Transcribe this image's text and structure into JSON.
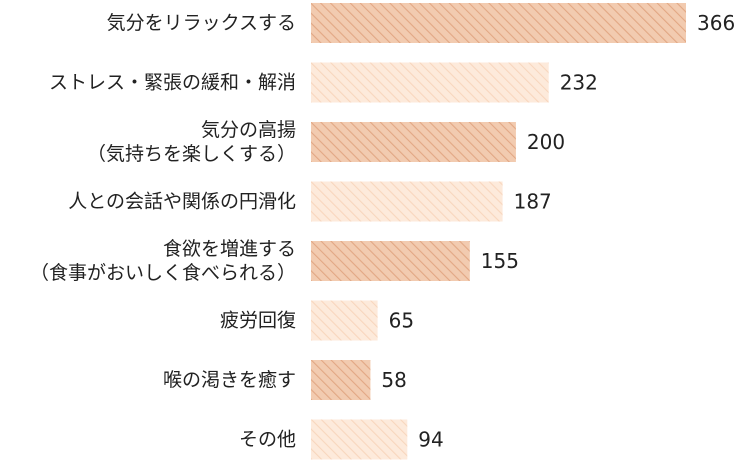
{
  "chart_data": {
    "type": "bar",
    "orientation": "horizontal",
    "categories": [
      [
        "気分をリラックスする"
      ],
      [
        "ストレス・緊張の緩和・解消"
      ],
      [
        "気分の高揚",
        "（気持ちを楽しくする）"
      ],
      [
        "人との会話や関係の円滑化"
      ],
      [
        "食欲を増進する",
        "（食事がおいしく食べられる）"
      ],
      [
        "疲労回復"
      ],
      [
        "喉の渇きを癒す"
      ],
      [
        "その他"
      ]
    ],
    "values": [
      366,
      232,
      200,
      187,
      155,
      65,
      58,
      94
    ],
    "xlim": [
      0,
      366
    ],
    "colors": {
      "dark_fill": "#f2cbb0",
      "dark_stripe": "#e2a784",
      "light_fill": "#fdeadb",
      "light_stripe": "#f8d6bd"
    },
    "bar_styles": [
      "dark",
      "light",
      "dark",
      "light",
      "dark",
      "light",
      "dark",
      "light"
    ]
  }
}
